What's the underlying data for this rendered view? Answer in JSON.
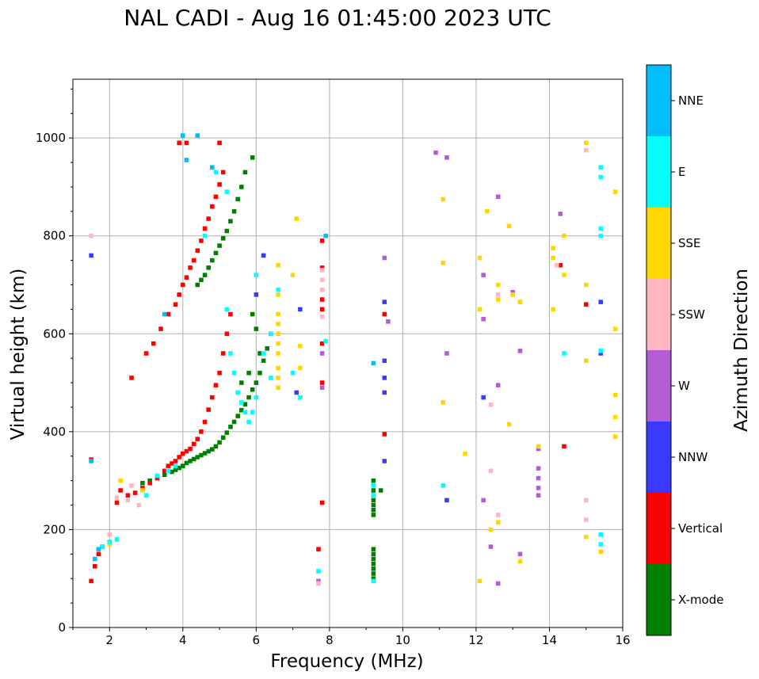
{
  "chart_data": {
    "type": "scatter",
    "title": "NAL CADI - Aug 16 01:45:00 2023 UTC",
    "xlabel": "Frequency (MHz)",
    "ylabel": "Virtual height (km)",
    "xlim": [
      1,
      16
    ],
    "ylim": [
      0,
      1120
    ],
    "xticks": [
      2,
      4,
      6,
      8,
      10,
      12,
      14,
      16
    ],
    "xtick_labels": [
      "2",
      "4",
      "6",
      "8",
      "10",
      "12",
      "14",
      "16"
    ],
    "yticks": [
      0,
      200,
      400,
      600,
      800,
      1000
    ],
    "ytick_labels": [
      "0",
      "200",
      "400",
      "600",
      "800",
      "1000"
    ],
    "grid": true,
    "colorbar": {
      "label": "Azimuth Direction",
      "categories": [
        "X-mode",
        "Vertical",
        "NNW",
        "W",
        "SSW",
        "SSE",
        "E",
        "NNE"
      ],
      "colors": [
        "#008000",
        "#ff0000",
        "#3a3aff",
        "#b55bd6",
        "#ffb6c1",
        "#ffd700",
        "#00ffff",
        "#00bfff"
      ]
    },
    "series": [
      {
        "name": "X-mode",
        "color": "#008000",
        "points": [
          [
            2.9,
            295
          ],
          [
            3.1,
            300
          ],
          [
            3.3,
            306
          ],
          [
            3.5,
            312
          ],
          [
            3.7,
            318
          ],
          [
            3.8,
            322
          ],
          [
            3.9,
            326
          ],
          [
            4.0,
            330
          ],
          [
            4.1,
            336
          ],
          [
            4.2,
            340
          ],
          [
            4.3,
            344
          ],
          [
            4.4,
            348
          ],
          [
            4.5,
            352
          ],
          [
            4.6,
            356
          ],
          [
            4.7,
            360
          ],
          [
            4.8,
            364
          ],
          [
            4.9,
            370
          ],
          [
            5.0,
            378
          ],
          [
            5.1,
            388
          ],
          [
            5.2,
            398
          ],
          [
            5.3,
            410
          ],
          [
            5.4,
            420
          ],
          [
            5.5,
            432
          ],
          [
            5.6,
            444
          ],
          [
            5.7,
            456
          ],
          [
            5.8,
            470
          ],
          [
            5.9,
            486
          ],
          [
            6.0,
            500
          ],
          [
            6.1,
            520
          ],
          [
            6.2,
            545
          ],
          [
            6.3,
            570
          ],
          [
            6.4,
            600
          ],
          [
            4.4,
            700
          ],
          [
            4.5,
            710
          ],
          [
            4.6,
            720
          ],
          [
            4.7,
            735
          ],
          [
            4.8,
            750
          ],
          [
            4.9,
            765
          ],
          [
            5.0,
            780
          ],
          [
            5.1,
            795
          ],
          [
            5.2,
            810
          ],
          [
            5.3,
            830
          ],
          [
            5.4,
            850
          ],
          [
            5.5,
            875
          ],
          [
            5.6,
            900
          ],
          [
            5.7,
            930
          ],
          [
            5.9,
            960
          ],
          [
            5.9,
            640
          ],
          [
            6.0,
            610
          ],
          [
            6.1,
            560
          ],
          [
            5.8,
            520
          ],
          [
            5.6,
            500
          ],
          [
            9.2,
            300
          ],
          [
            9.2,
            290
          ],
          [
            9.2,
            280
          ],
          [
            9.2,
            270
          ],
          [
            9.2,
            260
          ],
          [
            9.2,
            250
          ],
          [
            9.2,
            240
          ],
          [
            9.2,
            230
          ],
          [
            9.4,
            280
          ],
          [
            9.2,
            160
          ],
          [
            9.2,
            150
          ],
          [
            9.2,
            140
          ],
          [
            9.2,
            130
          ],
          [
            9.2,
            120
          ],
          [
            9.2,
            110
          ],
          [
            9.2,
            100
          ]
        ]
      },
      {
        "name": "Vertical",
        "color": "#ff0000",
        "points": [
          [
            1.5,
            95
          ],
          [
            1.6,
            125
          ],
          [
            1.7,
            150
          ],
          [
            1.8,
            165
          ],
          [
            2.2,
            255
          ],
          [
            2.3,
            280
          ],
          [
            2.5,
            270
          ],
          [
            2.7,
            275
          ],
          [
            2.9,
            285
          ],
          [
            3.1,
            295
          ],
          [
            3.3,
            305
          ],
          [
            3.5,
            320
          ],
          [
            3.6,
            330
          ],
          [
            3.7,
            335
          ],
          [
            3.8,
            340
          ],
          [
            3.9,
            348
          ],
          [
            4.0,
            355
          ],
          [
            4.1,
            360
          ],
          [
            4.2,
            365
          ],
          [
            4.3,
            375
          ],
          [
            4.4,
            385
          ],
          [
            4.5,
            400
          ],
          [
            4.6,
            420
          ],
          [
            4.7,
            445
          ],
          [
            4.8,
            470
          ],
          [
            4.9,
            495
          ],
          [
            5.0,
            520
          ],
          [
            5.1,
            560
          ],
          [
            5.2,
            600
          ],
          [
            5.3,
            640
          ],
          [
            2.6,
            510
          ],
          [
            3.0,
            560
          ],
          [
            3.2,
            580
          ],
          [
            3.4,
            610
          ],
          [
            3.6,
            640
          ],
          [
            3.8,
            660
          ],
          [
            3.9,
            680
          ],
          [
            4.0,
            700
          ],
          [
            4.1,
            715
          ],
          [
            4.2,
            735
          ],
          [
            4.3,
            750
          ],
          [
            4.4,
            770
          ],
          [
            4.5,
            790
          ],
          [
            4.6,
            815
          ],
          [
            4.7,
            835
          ],
          [
            4.8,
            860
          ],
          [
            4.9,
            880
          ],
          [
            5.0,
            905
          ],
          [
            5.1,
            930
          ],
          [
            3.9,
            990
          ],
          [
            4.1,
            990
          ],
          [
            5.0,
            990
          ],
          [
            1.5,
            343
          ],
          [
            7.8,
            790
          ],
          [
            7.8,
            735
          ],
          [
            7.8,
            670
          ],
          [
            7.8,
            650
          ],
          [
            7.8,
            580
          ],
          [
            7.8,
            500
          ],
          [
            7.8,
            255
          ],
          [
            7.7,
            160
          ],
          [
            9.5,
            395
          ],
          [
            9.5,
            640
          ],
          [
            14.3,
            740
          ],
          [
            14.4,
            370
          ],
          [
            15.0,
            660
          ]
        ]
      },
      {
        "name": "NNW",
        "color": "#3a3aff",
        "points": [
          [
            1.5,
            760
          ],
          [
            6.2,
            760
          ],
          [
            6.0,
            680
          ],
          [
            7.2,
            650
          ],
          [
            9.5,
            665
          ],
          [
            9.5,
            545
          ],
          [
            9.5,
            510
          ],
          [
            9.5,
            480
          ],
          [
            9.5,
            340
          ],
          [
            11.2,
            260
          ],
          [
            12.2,
            470
          ],
          [
            15.4,
            665
          ],
          [
            15.4,
            560
          ],
          [
            7.1,
            480
          ]
        ]
      },
      {
        "name": "W",
        "color": "#b55bd6",
        "points": [
          [
            9.5,
            755
          ],
          [
            9.6,
            625
          ],
          [
            10.9,
            970
          ],
          [
            11.2,
            960
          ],
          [
            11.2,
            560
          ],
          [
            12.2,
            720
          ],
          [
            12.2,
            630
          ],
          [
            12.2,
            260
          ],
          [
            12.4,
            165
          ],
          [
            12.6,
            880
          ],
          [
            12.6,
            495
          ],
          [
            12.6,
            90
          ],
          [
            13.0,
            685
          ],
          [
            13.2,
            565
          ],
          [
            13.2,
            150
          ],
          [
            13.7,
            365
          ],
          [
            13.7,
            325
          ],
          [
            13.7,
            305
          ],
          [
            13.7,
            285
          ],
          [
            13.7,
            270
          ],
          [
            14.3,
            845
          ],
          [
            7.7,
            95
          ],
          [
            7.8,
            560
          ],
          [
            7.8,
            490
          ]
        ]
      },
      {
        "name": "SSW",
        "color": "#ffb6c1",
        "points": [
          [
            1.5,
            800
          ],
          [
            2.0,
            190
          ],
          [
            2.2,
            265
          ],
          [
            2.5,
            260
          ],
          [
            2.6,
            290
          ],
          [
            2.8,
            250
          ],
          [
            7.8,
            730
          ],
          [
            7.8,
            710
          ],
          [
            7.8,
            690
          ],
          [
            7.8,
            635
          ],
          [
            12.4,
            455
          ],
          [
            12.4,
            320
          ],
          [
            12.6,
            230
          ],
          [
            12.6,
            680
          ],
          [
            13.2,
            665
          ],
          [
            14.2,
            740
          ],
          [
            15.0,
            975
          ],
          [
            15.0,
            260
          ],
          [
            15.0,
            220
          ],
          [
            7.7,
            90
          ]
        ]
      },
      {
        "name": "SSE",
        "color": "#ffd700",
        "points": [
          [
            2.0,
            170
          ],
          [
            2.3,
            300
          ],
          [
            2.9,
            280
          ],
          [
            6.6,
            740
          ],
          [
            6.6,
            680
          ],
          [
            6.6,
            640
          ],
          [
            6.6,
            620
          ],
          [
            6.6,
            600
          ],
          [
            6.6,
            580
          ],
          [
            6.6,
            560
          ],
          [
            6.6,
            530
          ],
          [
            6.6,
            510
          ],
          [
            6.6,
            490
          ],
          [
            7.0,
            720
          ],
          [
            7.1,
            835
          ],
          [
            7.2,
            575
          ],
          [
            7.2,
            530
          ],
          [
            11.1,
            875
          ],
          [
            11.1,
            745
          ],
          [
            11.1,
            460
          ],
          [
            11.7,
            355
          ],
          [
            12.1,
            755
          ],
          [
            12.1,
            650
          ],
          [
            12.1,
            95
          ],
          [
            12.3,
            850
          ],
          [
            12.4,
            200
          ],
          [
            12.6,
            700
          ],
          [
            12.6,
            670
          ],
          [
            12.6,
            215
          ],
          [
            12.9,
            820
          ],
          [
            12.9,
            415
          ],
          [
            13.0,
            680
          ],
          [
            13.2,
            665
          ],
          [
            13.2,
            135
          ],
          [
            13.7,
            370
          ],
          [
            14.1,
            775
          ],
          [
            14.1,
            755
          ],
          [
            14.1,
            650
          ],
          [
            14.4,
            800
          ],
          [
            14.4,
            720
          ],
          [
            15.0,
            990
          ],
          [
            15.0,
            700
          ],
          [
            15.0,
            545
          ],
          [
            15.0,
            185
          ],
          [
            15.4,
            155
          ],
          [
            15.8,
            890
          ],
          [
            15.8,
            610
          ],
          [
            15.8,
            475
          ],
          [
            15.8,
            430
          ],
          [
            15.8,
            390
          ]
        ]
      },
      {
        "name": "E",
        "color": "#00ffff",
        "points": [
          [
            1.8,
            165
          ],
          [
            2.0,
            175
          ],
          [
            2.2,
            180
          ],
          [
            3.0,
            270
          ],
          [
            3.3,
            310
          ],
          [
            3.6,
            320
          ],
          [
            3.8,
            330
          ],
          [
            4.6,
            800
          ],
          [
            4.9,
            930
          ],
          [
            5.2,
            890
          ],
          [
            5.2,
            650
          ],
          [
            5.3,
            560
          ],
          [
            5.4,
            520
          ],
          [
            5.5,
            480
          ],
          [
            5.6,
            460
          ],
          [
            5.7,
            440
          ],
          [
            5.8,
            420
          ],
          [
            5.9,
            440
          ],
          [
            6.0,
            470
          ],
          [
            6.2,
            560
          ],
          [
            6.4,
            600
          ],
          [
            6.0,
            720
          ],
          [
            6.4,
            510
          ],
          [
            6.6,
            690
          ],
          [
            7.0,
            520
          ],
          [
            7.2,
            470
          ],
          [
            7.9,
            585
          ],
          [
            9.2,
            290
          ],
          [
            9.2,
            270
          ],
          [
            9.2,
            95
          ],
          [
            11.1,
            290
          ],
          [
            14.4,
            560
          ],
          [
            15.4,
            940
          ],
          [
            15.4,
            920
          ],
          [
            15.4,
            815
          ],
          [
            15.4,
            800
          ],
          [
            15.4,
            565
          ],
          [
            15.4,
            190
          ],
          [
            15.4,
            170
          ],
          [
            7.7,
            115
          ]
        ]
      },
      {
        "name": "NNE",
        "color": "#00bfff",
        "points": [
          [
            1.5,
            340
          ],
          [
            1.6,
            140
          ],
          [
            1.7,
            160
          ],
          [
            3.5,
            640
          ],
          [
            4.0,
            1005
          ],
          [
            4.1,
            955
          ],
          [
            4.4,
            1005
          ],
          [
            4.8,
            940
          ],
          [
            7.9,
            800
          ],
          [
            9.2,
            540
          ]
        ]
      }
    ]
  }
}
